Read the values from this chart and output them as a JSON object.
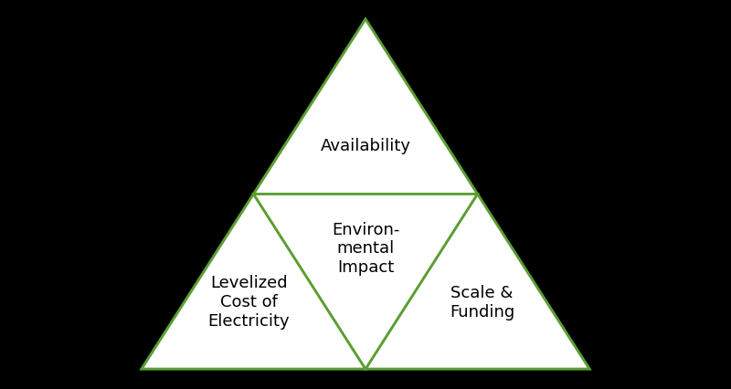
{
  "background_color": "#000000",
  "triangle_fill": "#ffffff",
  "triangle_edge_color": "#5a9e32",
  "triangle_edge_width": 2.0,
  "labels": {
    "top": "Availability",
    "bottom_left": "Levelized\nCost of\nElectricity",
    "bottom_right": "Scale &\nFunding",
    "center": "Environ-\nmental\nImpact"
  },
  "font_size": 13,
  "font_color": "#000000",
  "fig_width": 8.0,
  "fig_height": 4.27,
  "dpi": 100
}
